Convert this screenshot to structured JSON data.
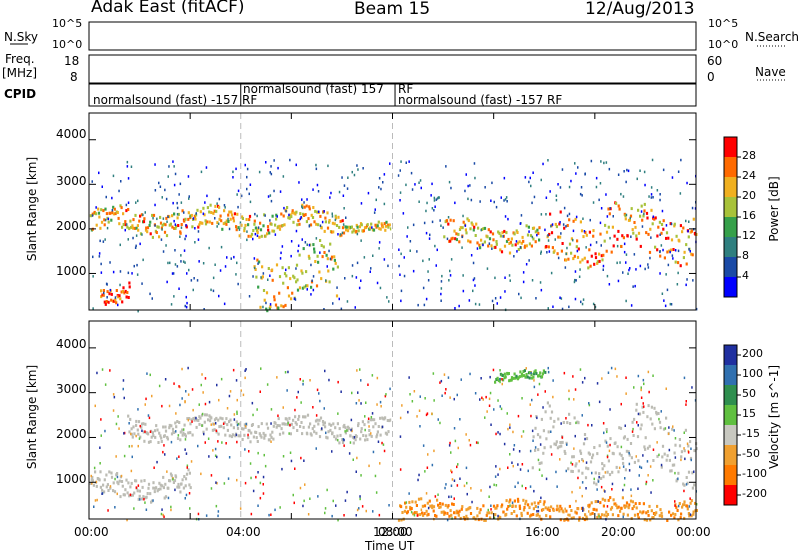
{
  "header": {
    "station": "Adak East (fitACF)",
    "beam": "Beam 15",
    "date": "12/Aug/2013"
  },
  "side_labels": {
    "nsky": "N.Sky",
    "freq_top": "Freq.",
    "freq_unit": "[MHz]",
    "cpid": "CPID",
    "nsearch": "N.Search",
    "nave": "Nave"
  },
  "nsky_ticks": [
    "10^5",
    "10^0"
  ],
  "nsearch_ticks": [
    "10^5",
    "10^0"
  ],
  "freq_ticks": [
    "18",
    "8"
  ],
  "nave_ticks": [
    "60",
    "0"
  ],
  "cpid_labels": [
    {
      "text": "normalsound (fast) -157 RF",
      "x_hours": 0.1,
      "row": 1
    },
    {
      "text": "normalsound (fast) 157",
      "x_hours": 6.1,
      "row": 0
    },
    {
      "text": "RF",
      "x_hours": 12.15,
      "row": 0
    },
    {
      "text": "normalsound (fast) -157 RF",
      "x_hours": 12.15,
      "row": 1
    }
  ],
  "chart_data": [
    {
      "type": "heatmap",
      "title": "Power",
      "xlabel": "Time UT",
      "ylabel": "Slant Range [km]",
      "x_ticks": [
        "00:00",
        "04:00",
        "08:00",
        "12:00",
        "16:00",
        "20:00",
        "00:00"
      ],
      "xlim_hours": [
        0,
        24
      ],
      "y_ticks": [
        "1000",
        "2000",
        "3000",
        "4000"
      ],
      "ylim": [
        180,
        4600
      ],
      "colorbar": {
        "label": "Power [dB]",
        "ticks": [
          "4",
          "8",
          "12",
          "16",
          "20",
          "24",
          "28"
        ],
        "range": [
          0,
          32
        ],
        "colors": [
          "#0000ff",
          "#1a4aa6",
          "#2f7f7f",
          "#36a04a",
          "#a8c23a",
          "#f0b020",
          "#ff6a00",
          "#ff0000"
        ]
      },
      "features": [
        {
          "kind": "band",
          "start_h": 0.0,
          "end_h": 10.0,
          "range_km": [
            1950,
            2450
          ],
          "power_db": 22
        },
        {
          "kind": "band",
          "start_h": 10.0,
          "end_h": 11.9,
          "range_km": [
            1950,
            2150
          ],
          "power_db": 20
        },
        {
          "kind": "band",
          "start_h": 14.0,
          "end_h": 17.8,
          "range_km": [
            1600,
            2150
          ],
          "power_db": 22
        },
        {
          "kind": "band",
          "start_h": 18.0,
          "end_h": 24.0,
          "range_km": [
            1400,
            2500
          ],
          "power_db": 24
        },
        {
          "kind": "patch",
          "start_h": 0.4,
          "end_h": 1.6,
          "range_km": [
            400,
            800
          ],
          "power_db": 28
        },
        {
          "kind": "patch",
          "start_h": 6.5,
          "end_h": 9.8,
          "range_km": [
            400,
            1500
          ],
          "power_db": 20
        }
      ]
    },
    {
      "type": "heatmap",
      "title": "Velocity",
      "xlabel": "Time UT",
      "ylabel": "Slant Range [km]",
      "x_ticks": [
        "00:00",
        "04:00",
        "08:00",
        "12:00",
        "16:00",
        "20:00",
        "00:00"
      ],
      "xlim_hours": [
        0,
        24
      ],
      "y_ticks": [
        "1000",
        "2000",
        "3000",
        "4000"
      ],
      "ylim": [
        180,
        4600
      ],
      "colorbar": {
        "label": "Velocity [m s^-1]",
        "ticks": [
          "200",
          "100",
          "50",
          "15",
          "-15",
          "-50",
          "-100",
          "-200"
        ],
        "colors": [
          "#2030a0",
          "#3070b0",
          "#2f8f4f",
          "#60c040",
          "#c8c8c0",
          "#f0a030",
          "#ff7a00",
          "#ff0000"
        ]
      },
      "ground_scatter_color": "#bcbcb4",
      "features": [
        {
          "kind": "ground_scatter",
          "start_h": 1.5,
          "end_h": 11.9,
          "range_km": [
            2000,
            2450
          ]
        },
        {
          "kind": "ground_scatter",
          "start_h": 0.0,
          "end_h": 4.0,
          "range_km": [
            700,
            1200
          ]
        },
        {
          "kind": "ground_scatter",
          "start_h": 17.5,
          "end_h": 24.0,
          "range_km": [
            1200,
            2500
          ]
        },
        {
          "kind": "positive_velocity",
          "start_h": 16.0,
          "end_h": 18.0,
          "range_km": [
            3300,
            3500
          ],
          "velocity": 60
        },
        {
          "kind": "negative_velocity",
          "start_h": 12.2,
          "end_h": 24.0,
          "range_km": [
            180,
            600
          ],
          "velocity": -80
        }
      ]
    }
  ]
}
